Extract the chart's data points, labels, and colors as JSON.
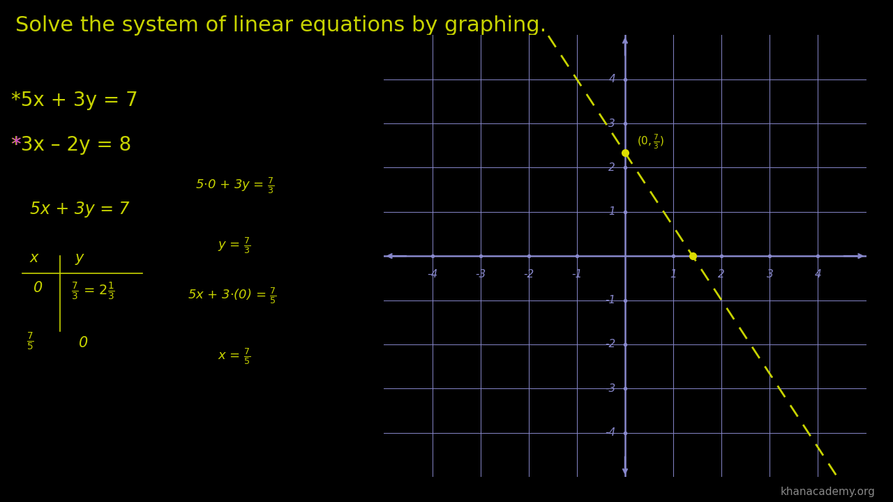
{
  "bg_color": "#000000",
  "title": "Solve the system of linear equations by graphing.",
  "title_color": "#c8d400",
  "title_fontsize": 22,
  "eq1_label": "*5x + 3y = 7",
  "eq1_color": "#c8d400",
  "eq2_color": "#c8d400",
  "eq2_star_color": "#cc44cc",
  "grid_color": "#8888cc",
  "axis_color": "#8888cc",
  "line1_color": "#c8d400",
  "point_color": "#dddd00",
  "annotation_color": "#c8d400",
  "watermark": "khanacademy.org",
  "watermark_color": "#888888",
  "graph_xlim": [
    -5,
    5
  ],
  "graph_ylim": [
    -5,
    5
  ]
}
